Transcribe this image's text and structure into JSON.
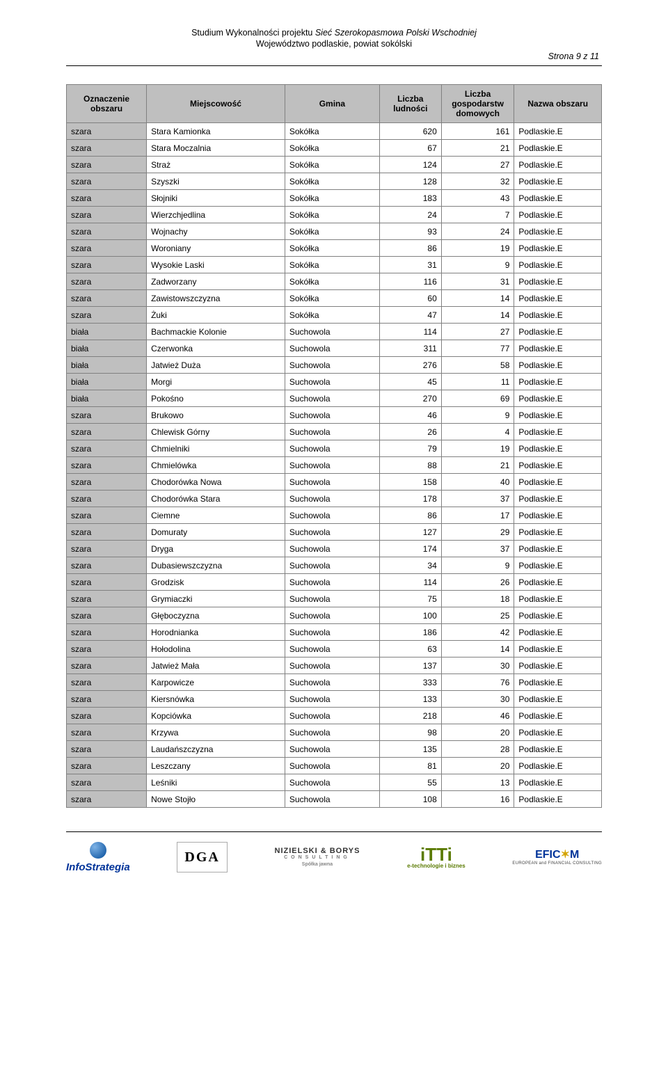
{
  "header": {
    "title_prefix": "Studium Wykonalności projektu ",
    "title_italic": "Sieć Szerokopasmowa Polski Wschodniej",
    "subtitle": "Województwo podlaskie, powiat sokólski",
    "page_indicator": "Strona 9 z 11"
  },
  "table": {
    "columns": [
      "Oznaczenie obszaru",
      "Miejscowość",
      "Gmina",
      "Liczba ludności",
      "Liczba gospodarstw domowych",
      "Nazwa obszaru"
    ],
    "rows": [
      [
        "szara",
        "Stara Kamionka",
        "Sokółka",
        "620",
        "161",
        "Podlaskie.E"
      ],
      [
        "szara",
        "Stara Moczalnia",
        "Sokółka",
        "67",
        "21",
        "Podlaskie.E"
      ],
      [
        "szara",
        "Straż",
        "Sokółka",
        "124",
        "27",
        "Podlaskie.E"
      ],
      [
        "szara",
        "Szyszki",
        "Sokółka",
        "128",
        "32",
        "Podlaskie.E"
      ],
      [
        "szara",
        "Słojniki",
        "Sokółka",
        "183",
        "43",
        "Podlaskie.E"
      ],
      [
        "szara",
        "Wierzchjedlina",
        "Sokółka",
        "24",
        "7",
        "Podlaskie.E"
      ],
      [
        "szara",
        "Wojnachy",
        "Sokółka",
        "93",
        "24",
        "Podlaskie.E"
      ],
      [
        "szara",
        "Woroniany",
        "Sokółka",
        "86",
        "19",
        "Podlaskie.E"
      ],
      [
        "szara",
        "Wysokie Laski",
        "Sokółka",
        "31",
        "9",
        "Podlaskie.E"
      ],
      [
        "szara",
        "Zadworzany",
        "Sokółka",
        "116",
        "31",
        "Podlaskie.E"
      ],
      [
        "szara",
        "Zawistowszczyzna",
        "Sokółka",
        "60",
        "14",
        "Podlaskie.E"
      ],
      [
        "szara",
        "Żuki",
        "Sokółka",
        "47",
        "14",
        "Podlaskie.E"
      ],
      [
        "biała",
        "Bachmackie Kolonie",
        "Suchowola",
        "114",
        "27",
        "Podlaskie.E"
      ],
      [
        "biała",
        "Czerwonka",
        "Suchowola",
        "311",
        "77",
        "Podlaskie.E"
      ],
      [
        "biała",
        "Jatwież Duża",
        "Suchowola",
        "276",
        "58",
        "Podlaskie.E"
      ],
      [
        "biała",
        "Morgi",
        "Suchowola",
        "45",
        "11",
        "Podlaskie.E"
      ],
      [
        "biała",
        "Pokośno",
        "Suchowola",
        "270",
        "69",
        "Podlaskie.E"
      ],
      [
        "szara",
        "Brukowo",
        "Suchowola",
        "46",
        "9",
        "Podlaskie.E"
      ],
      [
        "szara",
        "Chlewisk Górny",
        "Suchowola",
        "26",
        "4",
        "Podlaskie.E"
      ],
      [
        "szara",
        "Chmielniki",
        "Suchowola",
        "79",
        "19",
        "Podlaskie.E"
      ],
      [
        "szara",
        "Chmielówka",
        "Suchowola",
        "88",
        "21",
        "Podlaskie.E"
      ],
      [
        "szara",
        "Chodorówka Nowa",
        "Suchowola",
        "158",
        "40",
        "Podlaskie.E"
      ],
      [
        "szara",
        "Chodorówka Stara",
        "Suchowola",
        "178",
        "37",
        "Podlaskie.E"
      ],
      [
        "szara",
        "Ciemne",
        "Suchowola",
        "86",
        "17",
        "Podlaskie.E"
      ],
      [
        "szara",
        "Domuraty",
        "Suchowola",
        "127",
        "29",
        "Podlaskie.E"
      ],
      [
        "szara",
        "Dryga",
        "Suchowola",
        "174",
        "37",
        "Podlaskie.E"
      ],
      [
        "szara",
        "Dubasiewszczyzna",
        "Suchowola",
        "34",
        "9",
        "Podlaskie.E"
      ],
      [
        "szara",
        "Grodzisk",
        "Suchowola",
        "114",
        "26",
        "Podlaskie.E"
      ],
      [
        "szara",
        "Grymiaczki",
        "Suchowola",
        "75",
        "18",
        "Podlaskie.E"
      ],
      [
        "szara",
        "Głęboczyzna",
        "Suchowola",
        "100",
        "25",
        "Podlaskie.E"
      ],
      [
        "szara",
        "Horodnianka",
        "Suchowola",
        "186",
        "42",
        "Podlaskie.E"
      ],
      [
        "szara",
        "Hołodolina",
        "Suchowola",
        "63",
        "14",
        "Podlaskie.E"
      ],
      [
        "szara",
        "Jatwież Mała",
        "Suchowola",
        "137",
        "30",
        "Podlaskie.E"
      ],
      [
        "szara",
        "Karpowicze",
        "Suchowola",
        "333",
        "76",
        "Podlaskie.E"
      ],
      [
        "szara",
        "Kiersnówka",
        "Suchowola",
        "133",
        "30",
        "Podlaskie.E"
      ],
      [
        "szara",
        "Kopciówka",
        "Suchowola",
        "218",
        "46",
        "Podlaskie.E"
      ],
      [
        "szara",
        "Krzywa",
        "Suchowola",
        "98",
        "20",
        "Podlaskie.E"
      ],
      [
        "szara",
        "Laudańszczyzna",
        "Suchowola",
        "135",
        "28",
        "Podlaskie.E"
      ],
      [
        "szara",
        "Leszczany",
        "Suchowola",
        "81",
        "20",
        "Podlaskie.E"
      ],
      [
        "szara",
        "Leśniki",
        "Suchowola",
        "55",
        "13",
        "Podlaskie.E"
      ],
      [
        "szara",
        "Nowe Stojło",
        "Suchowola",
        "108",
        "16",
        "Podlaskie.E"
      ]
    ]
  },
  "footer": {
    "logos": {
      "infostrategia": "InfoStrategia",
      "dga": "DGA",
      "nb_top": "NIZIELSKI & BORYS",
      "nb_sub": "CONSULTING",
      "nb_bot": "Spółka jawna",
      "itti_main": "iTTi",
      "itti_sub": "e-technologie i biznes",
      "eficom": "EFIC",
      "eficom_suffix": "M",
      "eficom_sub": "EUROPEAN and FINANCIAL CONSULTING"
    }
  }
}
